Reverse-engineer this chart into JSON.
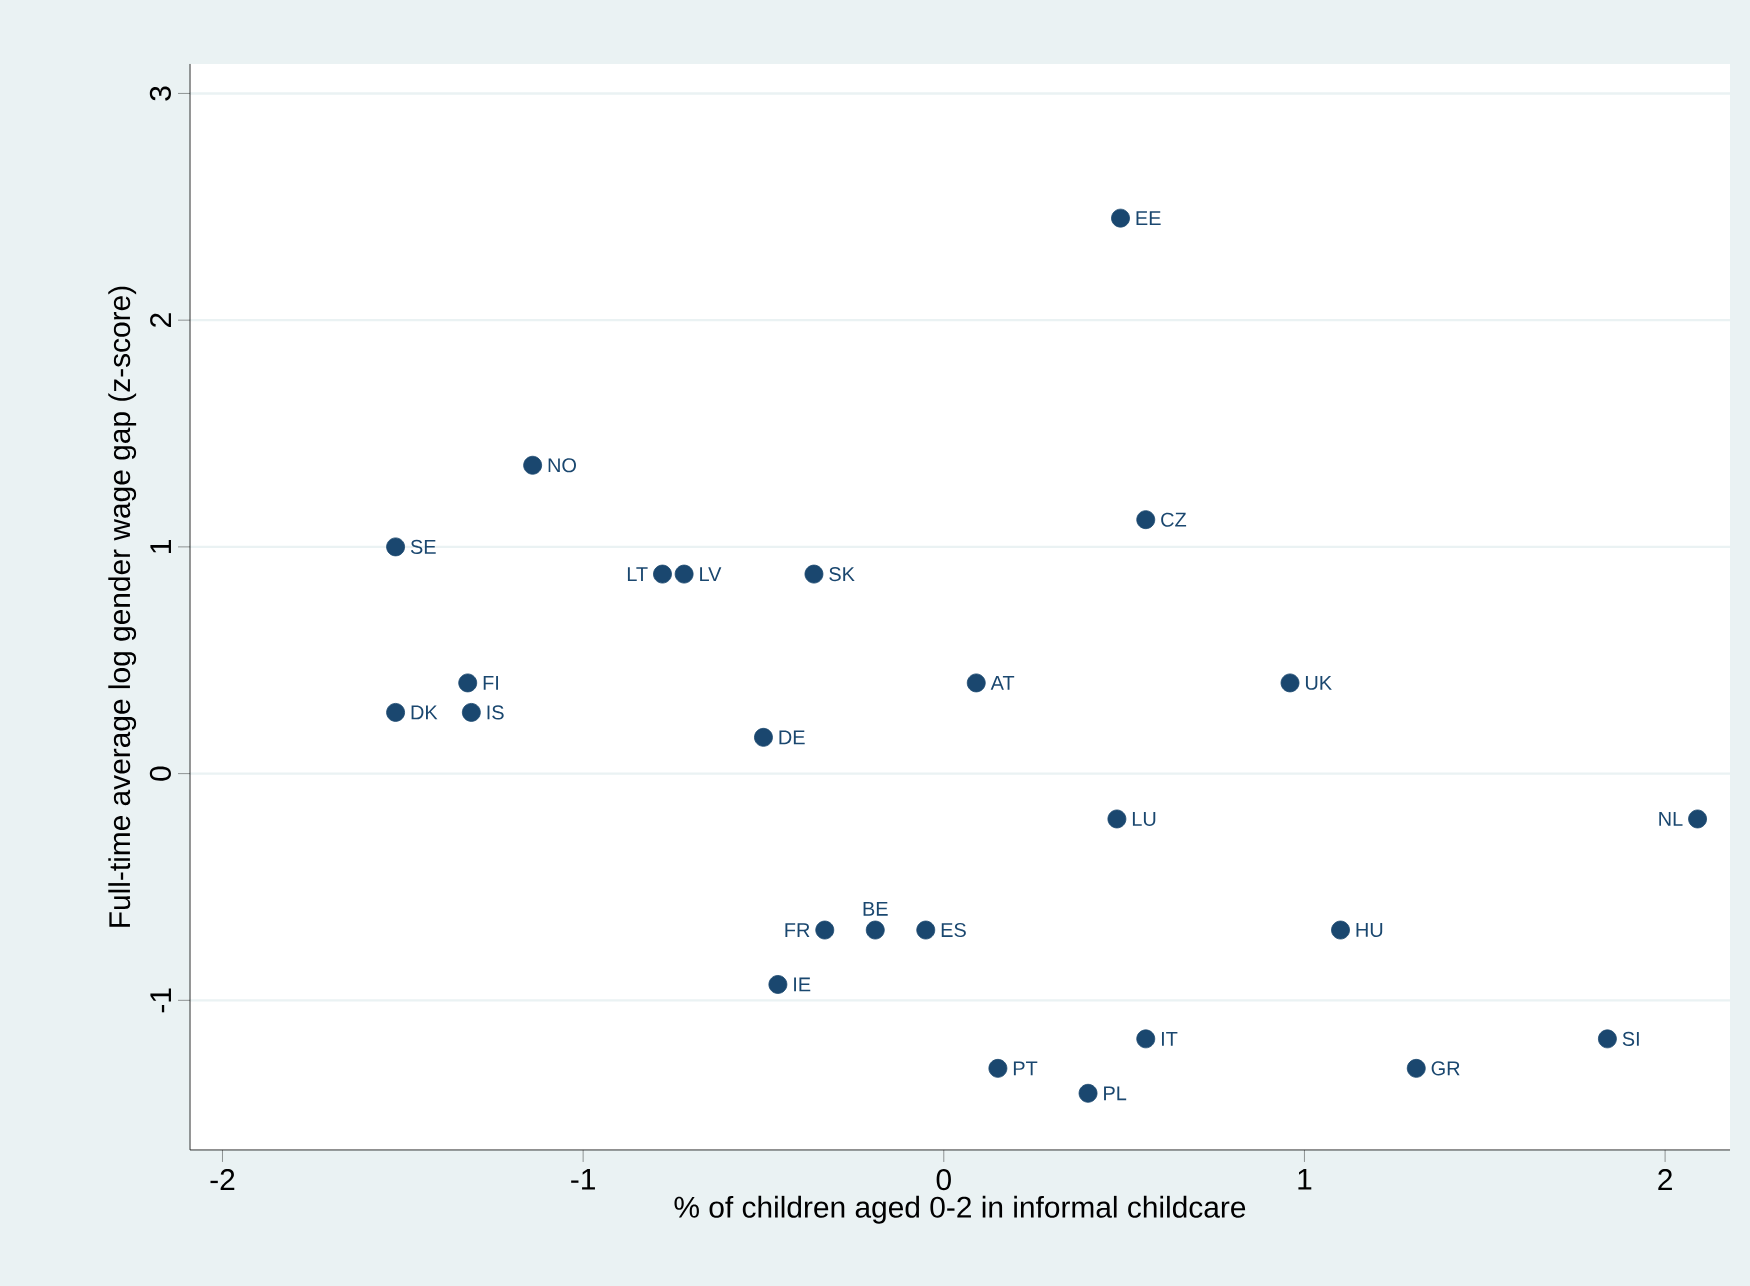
{
  "chart_data": {
    "type": "scatter",
    "xlabel": "% of children aged 0-2 in informal childcare",
    "ylabel": "Full-time average log gender wage gap (z-score)",
    "x": [
      0.49,
      -1.14,
      -1.52,
      0.56,
      -0.78,
      -0.72,
      -0.36,
      -1.32,
      0.09,
      0.96,
      -1.52,
      -1.31,
      -0.5,
      0.48,
      2.09,
      -0.33,
      -0.19,
      -0.05,
      1.1,
      -0.46,
      0.56,
      1.84,
      0.15,
      1.31,
      0.4
    ],
    "values": [
      2.45,
      1.36,
      1.0,
      1.12,
      0.88,
      0.88,
      0.88,
      0.4,
      0.4,
      0.4,
      0.27,
      0.27,
      0.16,
      -0.2,
      -0.2,
      -0.69,
      -0.69,
      -0.69,
      -0.69,
      -0.93,
      -1.17,
      -1.17,
      -1.3,
      -1.3,
      -1.41
    ],
    "color": "#1a476f",
    "marker": "circle",
    "annotations": [
      {
        "text": "EE",
        "x": 0.49,
        "y": 2.45
      },
      {
        "text": "NO",
        "x": -1.14,
        "y": 1.36
      },
      {
        "text": "SE",
        "x": -1.52,
        "y": 1.0
      },
      {
        "text": "CZ",
        "x": 0.56,
        "y": 1.12
      },
      {
        "text": "LT",
        "x": -0.78,
        "y": 0.88
      },
      {
        "text": "LV",
        "x": -0.72,
        "y": 0.88
      },
      {
        "text": "SK",
        "x": -0.36,
        "y": 0.88
      },
      {
        "text": "FI",
        "x": -1.32,
        "y": 0.4
      },
      {
        "text": "AT",
        "x": 0.09,
        "y": 0.4
      },
      {
        "text": "UK",
        "x": 0.96,
        "y": 0.4
      },
      {
        "text": "DK",
        "x": -1.52,
        "y": 0.27
      },
      {
        "text": "IS",
        "x": -1.31,
        "y": 0.27
      },
      {
        "text": "DE",
        "x": -0.5,
        "y": 0.16
      },
      {
        "text": "LU",
        "x": 0.48,
        "y": -0.2
      },
      {
        "text": "NL",
        "x": 2.09,
        "y": -0.2
      },
      {
        "text": "FR",
        "x": -0.33,
        "y": -0.69
      },
      {
        "text": "BE",
        "x": -0.19,
        "y": -0.69
      },
      {
        "text": "ES",
        "x": -0.05,
        "y": -0.69
      },
      {
        "text": "HU",
        "x": 1.1,
        "y": -0.69
      },
      {
        "text": "IE",
        "x": -0.46,
        "y": -0.93
      },
      {
        "text": "IT",
        "x": 0.56,
        "y": -1.17
      },
      {
        "text": "SI",
        "x": 1.84,
        "y": -1.17
      },
      {
        "text": "PT",
        "x": 0.15,
        "y": -1.3
      },
      {
        "text": "GR",
        "x": 1.31,
        "y": -1.3
      },
      {
        "text": "PL",
        "x": 0.4,
        "y": -1.41
      }
    ],
    "xlim": [
      -2.09,
      2.18
    ],
    "ylim": [
      -1.66,
      3.13
    ],
    "xticks": [
      -2,
      -1,
      0,
      1,
      2
    ],
    "yticks": [
      -1,
      0,
      1,
      2,
      3
    ],
    "grid": "y"
  }
}
